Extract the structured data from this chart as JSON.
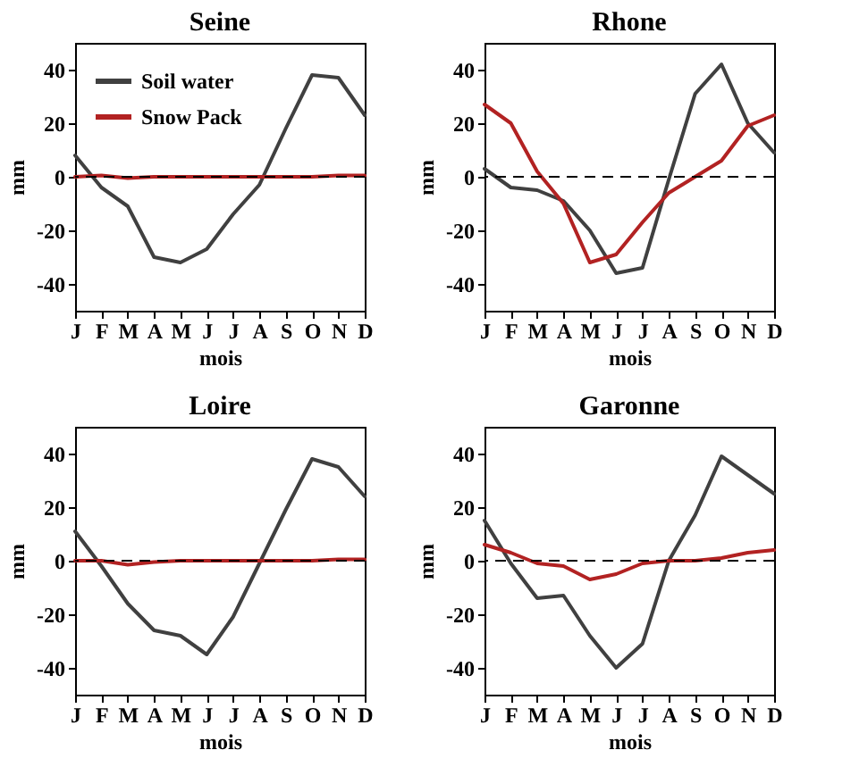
{
  "chart_data": [
    {
      "type": "line",
      "title": "Seine",
      "xlabel": "mois",
      "ylabel": "mm",
      "categories": [
        "J",
        "F",
        "M",
        "A",
        "M",
        "J",
        "J",
        "A",
        "S",
        "O",
        "N",
        "D"
      ],
      "ylim": [
        -50,
        50
      ],
      "yticks": [
        -40,
        -20,
        0,
        20,
        40
      ],
      "grid": false,
      "legend": "top left",
      "ref_lines": [
        {
          "axis": "y",
          "value": 0,
          "color": "#000000",
          "line_style": "dashed"
        }
      ],
      "series": [
        {
          "name": "Soil water",
          "color": "#404040",
          "values": [
            8,
            -4,
            -11,
            -30,
            -32,
            -27,
            -14,
            -3,
            18,
            38,
            37,
            23
          ]
        },
        {
          "name": "Snow Pack",
          "color": "#b22222",
          "values": [
            0,
            0.5,
            -0.5,
            0,
            0,
            0,
            0,
            0,
            0,
            0,
            0.5,
            0.5
          ]
        }
      ]
    },
    {
      "type": "line",
      "title": "Rhone",
      "xlabel": "mois",
      "ylabel": "mm",
      "categories": [
        "J",
        "F",
        "M",
        "A",
        "M",
        "J",
        "J",
        "A",
        "S",
        "O",
        "N",
        "D"
      ],
      "ylim": [
        -50,
        50
      ],
      "yticks": [
        -40,
        -20,
        0,
        20,
        40
      ],
      "grid": false,
      "ref_lines": [
        {
          "axis": "y",
          "value": 0,
          "color": "#000000",
          "line_style": "dashed"
        }
      ],
      "series": [
        {
          "color": "#404040",
          "values": [
            3,
            -4,
            -5,
            -9,
            -20,
            -36,
            -34,
            -1,
            31,
            42,
            20,
            9
          ]
        },
        {
          "color": "#b22222",
          "values": [
            27,
            20,
            2,
            -10,
            -32,
            -29,
            -17,
            -6,
            0,
            6,
            19,
            23
          ]
        }
      ]
    },
    {
      "type": "line",
      "title": "Loire",
      "xlabel": "mois",
      "ylabel": "mm",
      "categories": [
        "J",
        "F",
        "M",
        "A",
        "M",
        "J",
        "J",
        "A",
        "S",
        "O",
        "N",
        "D"
      ],
      "ylim": [
        -50,
        50
      ],
      "yticks": [
        -40,
        -20,
        0,
        20,
        40
      ],
      "grid": false,
      "ref_lines": [
        {
          "axis": "y",
          "value": 0,
          "color": "#000000",
          "line_style": "dashed"
        }
      ],
      "series": [
        {
          "color": "#404040",
          "values": [
            11,
            -2,
            -16,
            -26,
            -28,
            -35,
            -21,
            -1,
            19,
            38,
            35,
            24
          ]
        },
        {
          "color": "#b22222",
          "values": [
            0,
            0,
            -1.5,
            -0.5,
            0,
            0,
            0,
            0,
            0,
            0,
            0.5,
            0.5
          ]
        }
      ]
    },
    {
      "type": "line",
      "title": "Garonne",
      "xlabel": "mois",
      "ylabel": "mm",
      "categories": [
        "J",
        "F",
        "M",
        "A",
        "M",
        "J",
        "J",
        "A",
        "S",
        "O",
        "N",
        "D"
      ],
      "ylim": [
        -50,
        50
      ],
      "yticks": [
        -40,
        -20,
        0,
        20,
        40
      ],
      "grid": false,
      "ref_lines": [
        {
          "axis": "y",
          "value": 0,
          "color": "#000000",
          "line_style": "dashed"
        }
      ],
      "series": [
        {
          "color": "#404040",
          "values": [
            15,
            -1,
            -14,
            -13,
            -28,
            -40,
            -31,
            0,
            17,
            39,
            32,
            25
          ]
        },
        {
          "color": "#b22222",
          "values": [
            6,
            3,
            -1,
            -2,
            -7,
            -5,
            -1,
            0,
            0,
            1,
            3,
            4
          ]
        }
      ]
    }
  ]
}
